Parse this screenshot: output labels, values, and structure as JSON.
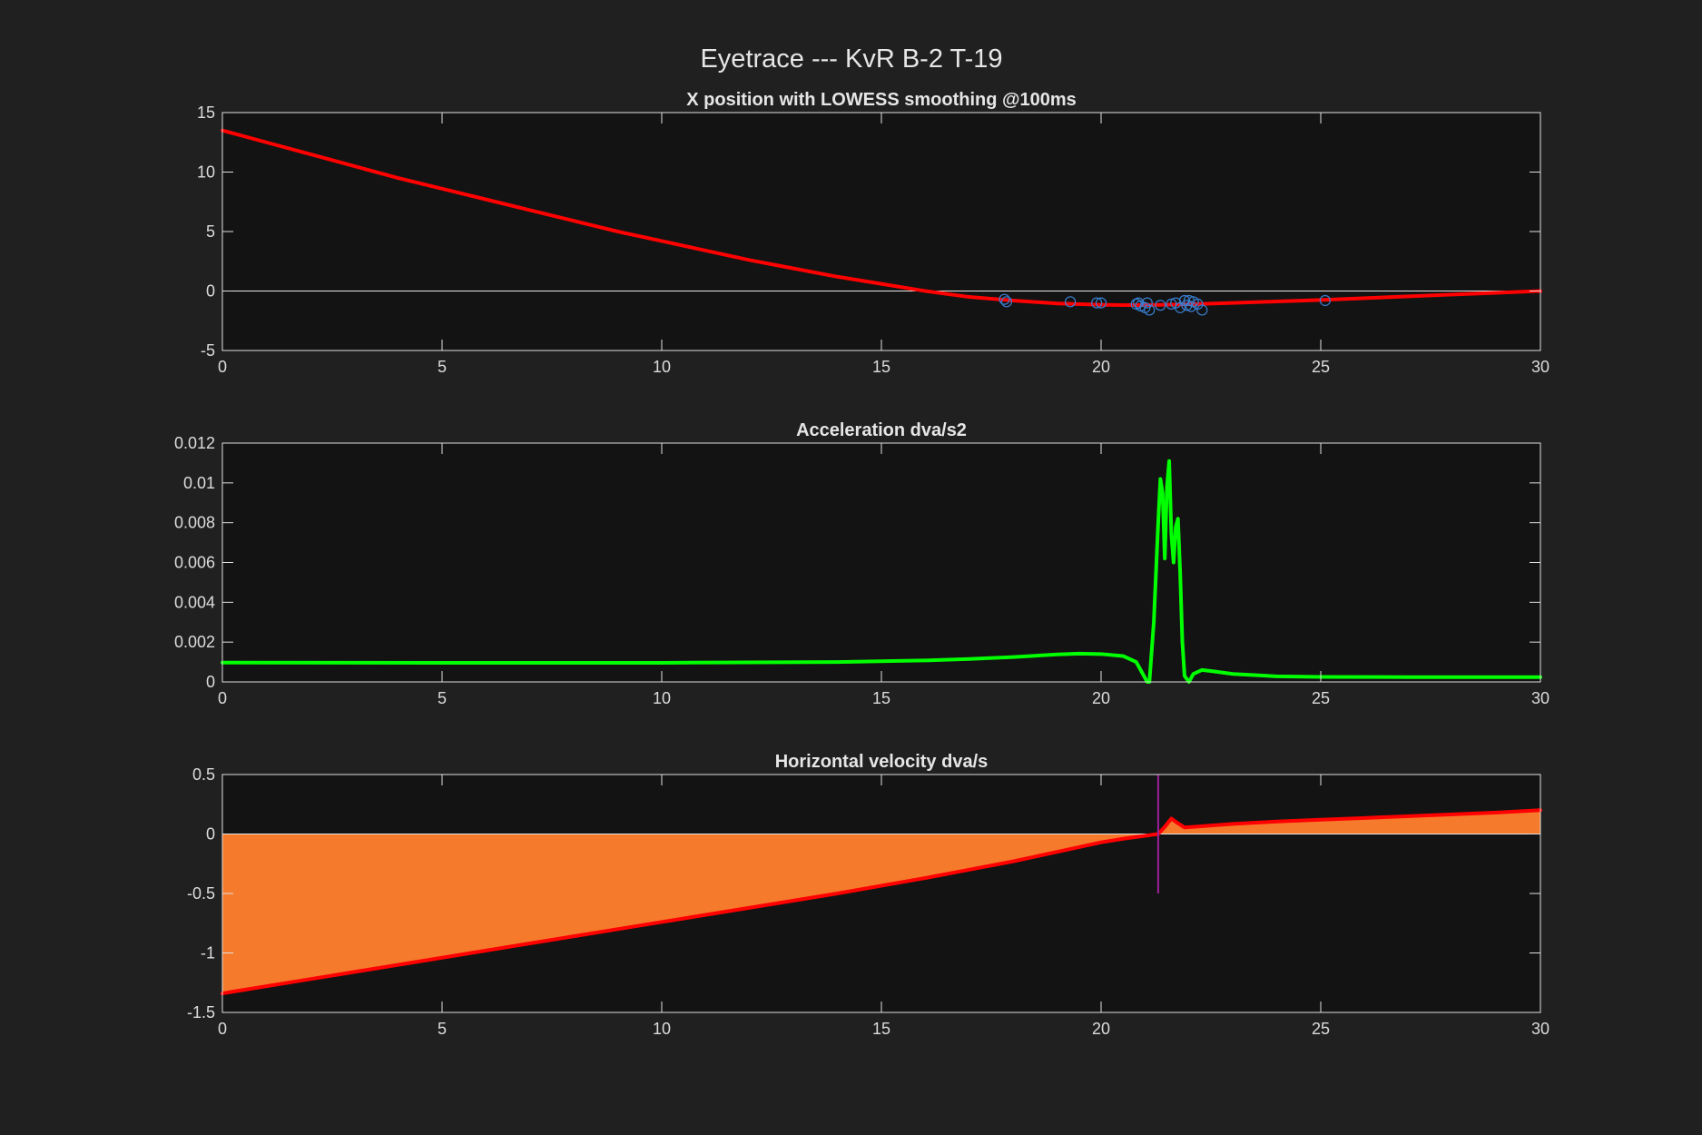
{
  "figure": {
    "title": "Eyetrace --- KvR B-2 T-19",
    "background": "#202020",
    "axes_background": "#131313",
    "text_color": "#dcdcdc"
  },
  "chart_data": [
    {
      "type": "line",
      "title": "X position with LOWESS smoothing @100ms",
      "xlabel": "",
      "ylabel": "",
      "xlim": [
        0,
        30
      ],
      "ylim": [
        -5,
        15
      ],
      "xticks": [
        0,
        5,
        10,
        15,
        20,
        25,
        30
      ],
      "yticks": [
        -5,
        0,
        5,
        10,
        15
      ],
      "zero_line": true,
      "grid": false,
      "series": [
        {
          "kind": "line",
          "color": "#ff0000",
          "x": [
            0,
            1,
            2,
            3,
            4,
            5,
            6,
            7,
            8,
            9,
            10,
            11,
            12,
            13,
            14,
            15,
            16,
            17,
            18,
            19,
            20,
            20.5,
            21,
            22,
            23,
            24,
            25,
            26,
            27,
            28,
            29,
            30
          ],
          "y": [
            13.5,
            12.5,
            11.5,
            10.5,
            9.5,
            8.6,
            7.7,
            6.8,
            5.9,
            5.0,
            4.2,
            3.4,
            2.6,
            1.9,
            1.2,
            0.6,
            0.0,
            -0.5,
            -0.8,
            -1.05,
            -1.15,
            -1.18,
            -1.18,
            -1.12,
            -1.0,
            -0.88,
            -0.75,
            -0.6,
            -0.45,
            -0.3,
            -0.15,
            0.0
          ]
        },
        {
          "kind": "scatter",
          "marker": "circle-open",
          "color": "#3a7fd0",
          "x": [
            17.8,
            17.85,
            19.3,
            19.9,
            20.0,
            20.8,
            20.85,
            20.9,
            21.0,
            21.05,
            21.1,
            21.35,
            21.6,
            21.7,
            21.8,
            21.9,
            21.95,
            22.0,
            22.05,
            22.1,
            22.2,
            22.3,
            25.1
          ],
          "y": [
            -0.7,
            -0.9,
            -0.9,
            -1.0,
            -1.0,
            -1.1,
            -1.0,
            -1.25,
            -1.4,
            -1.0,
            -1.6,
            -1.2,
            -1.1,
            -1.0,
            -1.4,
            -0.8,
            -1.2,
            -0.8,
            -1.3,
            -0.9,
            -1.1,
            -1.6,
            -0.8
          ]
        }
      ]
    },
    {
      "type": "line",
      "title": "Acceleration dva/s2",
      "xlabel": "",
      "ylabel": "",
      "xlim": [
        0,
        30
      ],
      "ylim": [
        0,
        0.012
      ],
      "xticks": [
        0,
        5,
        10,
        15,
        20,
        25,
        30
      ],
      "yticks": [
        0,
        0.002,
        0.004,
        0.006,
        0.008,
        0.01,
        0.012
      ],
      "grid": false,
      "series": [
        {
          "kind": "line",
          "color": "#00ff00",
          "x": [
            0,
            5,
            10,
            14,
            16,
            17,
            18,
            19,
            19.5,
            20,
            20.5,
            20.8,
            21.0,
            21.05,
            21.1,
            21.2,
            21.3,
            21.35,
            21.4,
            21.45,
            21.5,
            21.55,
            21.6,
            21.65,
            21.7,
            21.75,
            21.8,
            21.85,
            21.9,
            22.0,
            22.1,
            22.3,
            22.6,
            23,
            24,
            25,
            27,
            30
          ],
          "y": [
            0.00097,
            0.00096,
            0.00096,
            0.001,
            0.00108,
            0.00115,
            0.00125,
            0.00138,
            0.00142,
            0.0014,
            0.0013,
            0.001,
            0.0002,
            0.0,
            0.0,
            0.003,
            0.008,
            0.0102,
            0.0095,
            0.0062,
            0.0098,
            0.0111,
            0.0074,
            0.006,
            0.0078,
            0.0082,
            0.0055,
            0.002,
            0.0003,
            0.0,
            0.0004,
            0.0006,
            0.00052,
            0.0004,
            0.00028,
            0.00025,
            0.00024,
            0.00024
          ]
        }
      ]
    },
    {
      "type": "area",
      "title": "Horizontal velocity dva/s",
      "xlabel": "",
      "ylabel": "",
      "xlim": [
        0,
        30
      ],
      "ylim": [
        -1.5,
        0.5
      ],
      "xticks": [
        0,
        5,
        10,
        15,
        20,
        25,
        30
      ],
      "yticks": [
        -1.5,
        -1,
        -0.5,
        0,
        0.5
      ],
      "zero_line": true,
      "grid": false,
      "vline": {
        "x": 21.3,
        "ymin": -0.5,
        "ymax": 0.5,
        "color": "#9b1f9b"
      },
      "series": [
        {
          "kind": "area-line",
          "line_color": "#ff0000",
          "fill_color": "#f57a2c",
          "x": [
            0,
            2,
            4,
            6,
            8,
            10,
            12,
            14,
            16,
            17,
            18,
            19,
            20,
            20.5,
            21,
            21.3,
            21.45,
            21.6,
            21.75,
            21.9,
            22.1,
            23,
            24,
            25,
            26,
            27,
            28,
            29,
            30
          ],
          "y": [
            -1.34,
            -1.22,
            -1.1,
            -0.98,
            -0.86,
            -0.74,
            -0.62,
            -0.5,
            -0.37,
            -0.3,
            -0.23,
            -0.15,
            -0.07,
            -0.04,
            -0.015,
            0.0,
            0.06,
            0.13,
            0.09,
            0.055,
            0.06,
            0.085,
            0.105,
            0.12,
            0.135,
            0.15,
            0.165,
            0.18,
            0.2
          ]
        }
      ]
    }
  ]
}
